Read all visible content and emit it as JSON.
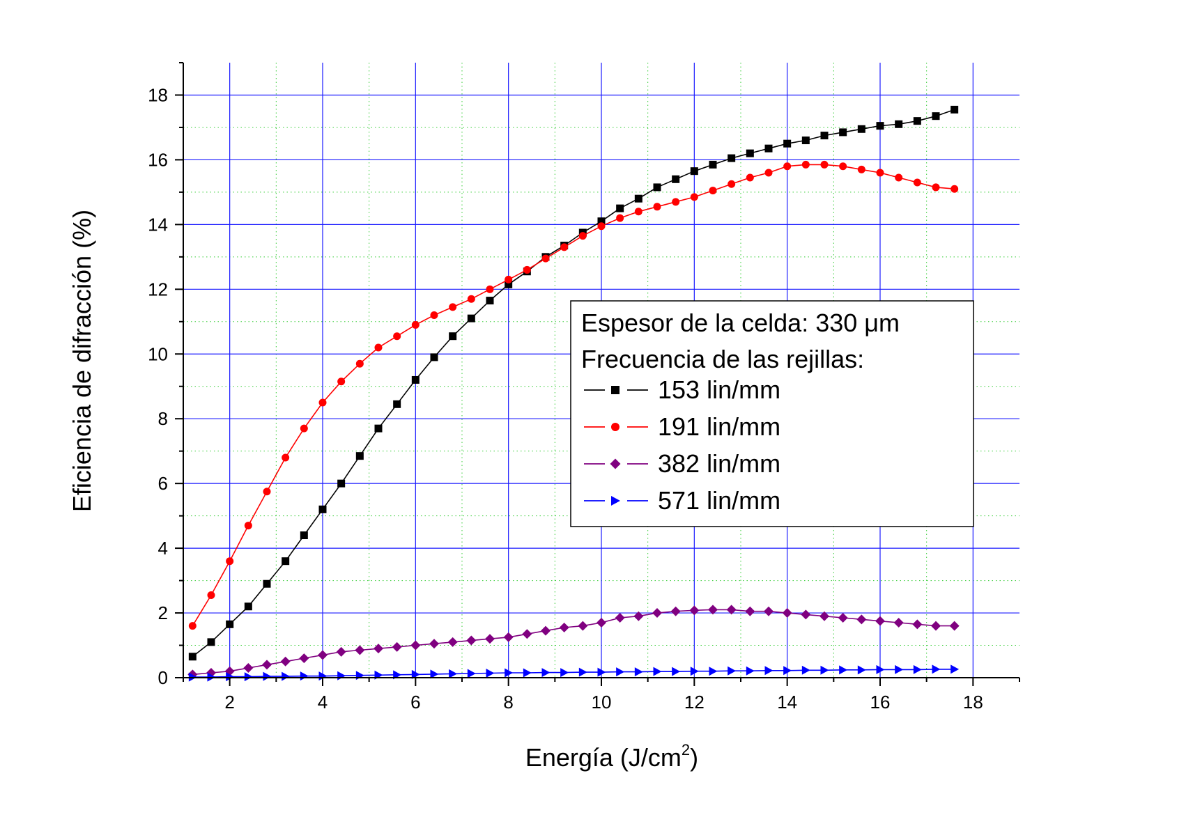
{
  "chart_data": {
    "type": "line",
    "xlabel": "Energía (J/cm",
    "xlabel_sup": "2",
    "xlabel_end": ")",
    "ylabel": "Eficiencia de difracción (%)",
    "xlim": [
      1,
      19
    ],
    "ylim": [
      0,
      19
    ],
    "xticks": [
      2,
      4,
      6,
      8,
      10,
      12,
      14,
      16,
      18
    ],
    "yticks": [
      0,
      2,
      4,
      6,
      8,
      10,
      12,
      14,
      16,
      18
    ],
    "grid": true,
    "legend_placement": "center-right",
    "legend_header": [
      "Espesor de la celda: 330 μm",
      "Frecuencia de las rejillas:"
    ],
    "x": [
      1.2,
      1.6,
      2.0,
      2.4,
      2.8,
      3.2,
      3.6,
      4.0,
      4.4,
      4.8,
      5.2,
      5.6,
      6.0,
      6.4,
      6.8,
      7.2,
      7.6,
      8.0,
      8.4,
      8.8,
      9.2,
      9.6,
      10.0,
      10.4,
      10.8,
      11.2,
      11.6,
      12.0,
      12.4,
      12.8,
      13.2,
      13.6,
      14.0,
      14.4,
      14.8,
      15.2,
      15.6,
      16.0,
      16.4,
      16.8,
      17.2,
      17.6
    ],
    "series": [
      {
        "name": "153 lin/mm",
        "color": "#000000",
        "marker": "square",
        "values": [
          0.65,
          1.1,
          1.65,
          2.2,
          2.9,
          3.6,
          4.4,
          5.2,
          6.0,
          6.85,
          7.7,
          8.45,
          9.2,
          9.9,
          10.55,
          11.1,
          11.65,
          12.15,
          12.55,
          13.0,
          13.35,
          13.75,
          14.1,
          14.5,
          14.8,
          15.15,
          15.4,
          15.65,
          15.85,
          16.05,
          16.2,
          16.35,
          16.5,
          16.6,
          16.75,
          16.85,
          16.95,
          17.05,
          17.1,
          17.2,
          17.35,
          17.55
        ]
      },
      {
        "name": "191 lin/mm",
        "color": "#ff0000",
        "marker": "circle",
        "values": [
          1.6,
          2.55,
          3.6,
          4.7,
          5.75,
          6.8,
          7.7,
          8.5,
          9.15,
          9.7,
          10.2,
          10.55,
          10.9,
          11.2,
          11.45,
          11.7,
          12.0,
          12.3,
          12.6,
          12.95,
          13.3,
          13.65,
          13.95,
          14.2,
          14.4,
          14.55,
          14.7,
          14.85,
          15.05,
          15.25,
          15.45,
          15.6,
          15.8,
          15.85,
          15.85,
          15.8,
          15.7,
          15.6,
          15.45,
          15.3,
          15.15,
          15.1
        ]
      },
      {
        "name": "382 lin/mm",
        "color": "#800080",
        "marker": "diamond",
        "values": [
          0.1,
          0.15,
          0.2,
          0.3,
          0.4,
          0.5,
          0.6,
          0.7,
          0.8,
          0.85,
          0.9,
          0.95,
          1.0,
          1.05,
          1.1,
          1.15,
          1.2,
          1.25,
          1.35,
          1.45,
          1.55,
          1.6,
          1.7,
          1.85,
          1.9,
          2.0,
          2.05,
          2.08,
          2.1,
          2.1,
          2.05,
          2.05,
          2.0,
          1.95,
          1.9,
          1.85,
          1.8,
          1.75,
          1.7,
          1.65,
          1.6,
          1.6
        ]
      },
      {
        "name": "571 lin/mm",
        "color": "#0000ff",
        "marker": "triangle-right",
        "values": [
          0.02,
          0.02,
          0.03,
          0.03,
          0.04,
          0.04,
          0.05,
          0.05,
          0.06,
          0.07,
          0.08,
          0.09,
          0.1,
          0.11,
          0.12,
          0.13,
          0.14,
          0.15,
          0.15,
          0.16,
          0.16,
          0.17,
          0.17,
          0.18,
          0.18,
          0.19,
          0.19,
          0.2,
          0.2,
          0.21,
          0.21,
          0.22,
          0.22,
          0.23,
          0.23,
          0.24,
          0.24,
          0.25,
          0.25,
          0.25,
          0.26,
          0.26
        ]
      }
    ]
  }
}
